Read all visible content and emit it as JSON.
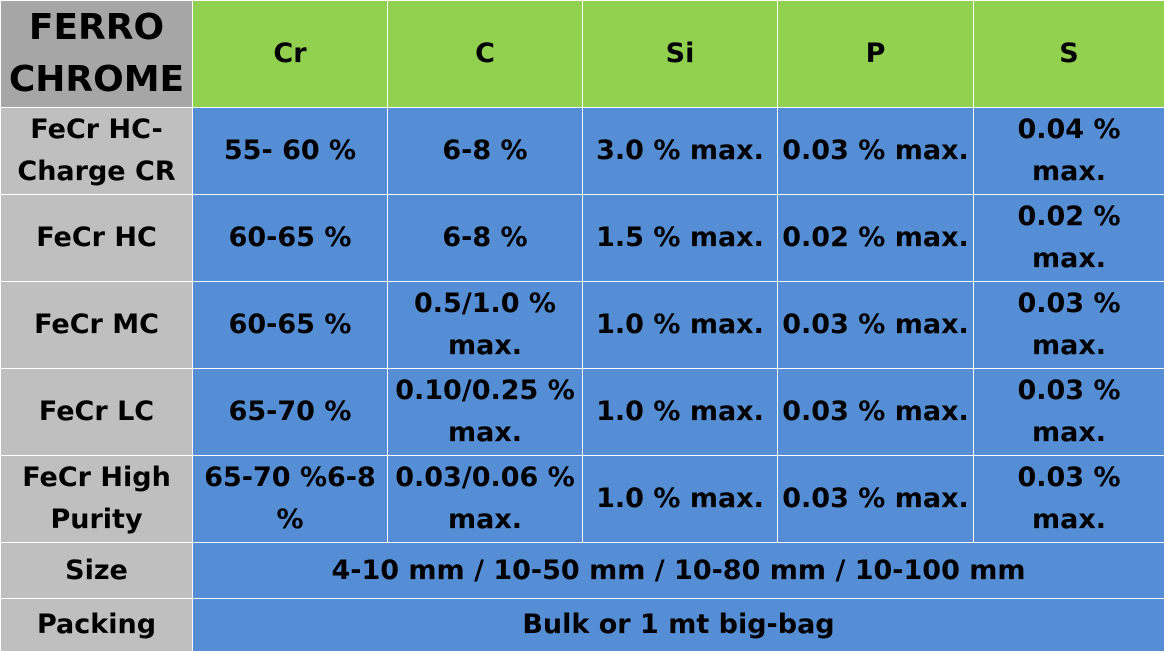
{
  "table": {
    "corner": "FERRO CHROME",
    "headers": [
      "Cr",
      "C",
      "Si",
      "P",
      "S"
    ],
    "rows": [
      {
        "label": "FeCr HC-Charge CR",
        "cells": [
          "55- 60 %",
          "6-8 %",
          "3.0 % max.",
          "0.03 % max.",
          "0.04 % max."
        ]
      },
      {
        "label": "FeCr HC",
        "cells": [
          "60-65 %",
          "6-8 %",
          "1.5 % max.",
          "0.02 % max.",
          "0.02 % max."
        ]
      },
      {
        "label": "FeCr MC",
        "cells": [
          "60-65 %",
          "0.5/1.0 % max.",
          "1.0 % max.",
          "0.03 % max.",
          "0.03 % max."
        ]
      },
      {
        "label": "FeCr LC",
        "cells": [
          "65-70 %",
          "0.10/0.25 % max.",
          "1.0 % max.",
          "0.03 % max.",
          "0.03 % max."
        ]
      },
      {
        "label": "FeCr High Purity",
        "cells": [
          "65-70 %6-8 %",
          "0.03/0.06 % max.",
          "1.0 % max.",
          "0.03 % max.",
          "0.03 % max."
        ]
      }
    ],
    "size": {
      "label": "Size",
      "value": "4-10 mm / 10-50 mm / 10-80 mm / 10-100 mm"
    },
    "packing": {
      "label": "Packing",
      "value": "Bulk or 1 mt big-bag"
    }
  },
  "colors": {
    "corner": "#a6a6a6",
    "header": "#92d050",
    "row_label": "#bfbfbf",
    "value_cell": "#558ed5",
    "grid": "#ffffff"
  }
}
